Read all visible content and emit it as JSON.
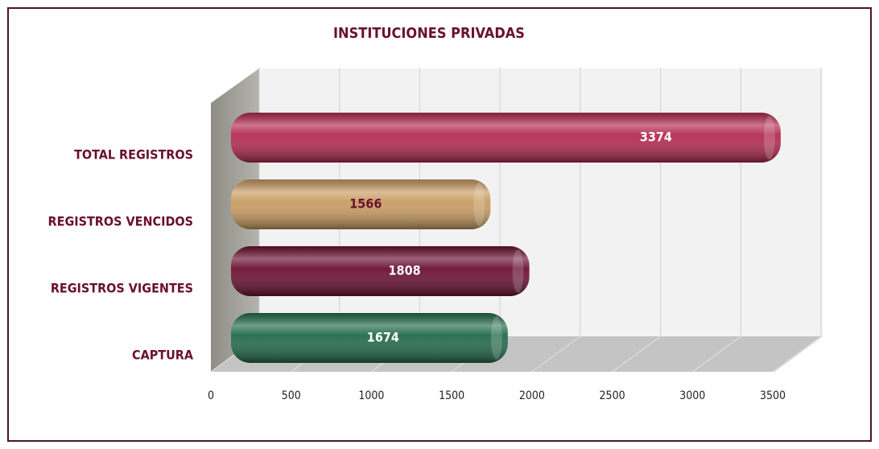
{
  "chart_data": {
    "type": "bar",
    "orientation": "horizontal",
    "title": "INSTITUCIONES PRIVADAS",
    "categories": [
      "TOTAL REGISTROS",
      "REGISTROS VENCIDOS",
      "REGISTROS VIGENTES",
      "CAPTURA"
    ],
    "values": [
      3374,
      1566,
      1808,
      1674
    ],
    "colors": [
      "#b32a50",
      "#c89c62",
      "#6a1030",
      "#226a4a"
    ],
    "label_colors": [
      "#ffffff",
      "#6a1030",
      "#ffffff",
      "#ffffff"
    ],
    "xlim": [
      0,
      3500
    ],
    "xticks": [
      0,
      500,
      1000,
      1500,
      2000,
      2500,
      3000,
      3500
    ],
    "grid": true
  }
}
